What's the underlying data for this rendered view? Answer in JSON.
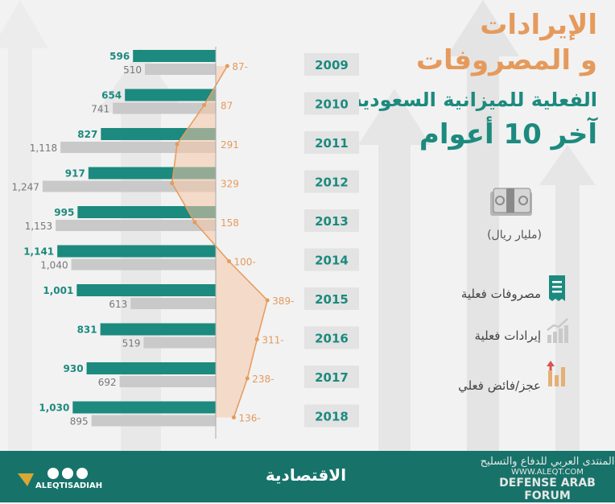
{
  "title": {
    "line1": "الإيرادات",
    "line2": "و المصروفات",
    "line3": "الفعلية للميزانية السعودية",
    "line4": "آخر 10 أعوام"
  },
  "unit_label": "(مليار ريال)",
  "legend": {
    "expenses": "مصروفات فعلية",
    "revenues": "إيرادات فعلية",
    "balance": "عجز/فائض فعلي"
  },
  "colors": {
    "expenses": "#1c8a7e",
    "revenues": "#c9c9c9",
    "balance": "#e59a5c",
    "balance_fill": "#f6c6a6",
    "footer": "#17736a"
  },
  "footer": {
    "logo": "الاقتصادية",
    "left_brand": "ALEQTISADIAH",
    "watermark_ar": "المنتدى العربي للدفاع والتسليح",
    "watermark_url": "WWW.ALEQT.COM",
    "watermark_en": "DEFENSE ARAB FORUM"
  },
  "chart_data": {
    "type": "bar",
    "categories": [
      "2009",
      "2010",
      "2011",
      "2012",
      "2013",
      "2014",
      "2015",
      "2016",
      "2017",
      "2018"
    ],
    "series": [
      {
        "name": "مصروفات فعلية",
        "values": [
          596,
          654,
          827,
          917,
          995,
          1141,
          1001,
          831,
          930,
          1030
        ],
        "labels": [
          "596",
          "654",
          "827",
          "917",
          "995",
          "1,141",
          "1,001",
          "831",
          "930",
          "1,030"
        ]
      },
      {
        "name": "إيرادات فعلية",
        "values": [
          510,
          741,
          1118,
          1247,
          1153,
          1040,
          613,
          519,
          692,
          895
        ],
        "labels": [
          "510",
          "741",
          "1,118",
          "1,247",
          "1,153",
          "1,040",
          "613",
          "519",
          "692",
          "895"
        ]
      },
      {
        "name": "عجز/فائض فعلي",
        "values": [
          -87,
          87,
          291,
          329,
          158,
          -100,
          -389,
          -311,
          -238,
          -136
        ],
        "labels": [
          "87-",
          "87",
          "291",
          "329",
          "158",
          "100-",
          "389-",
          "311-",
          "238-",
          "136-"
        ]
      }
    ],
    "orientation": "horizontal",
    "grid": false
  }
}
